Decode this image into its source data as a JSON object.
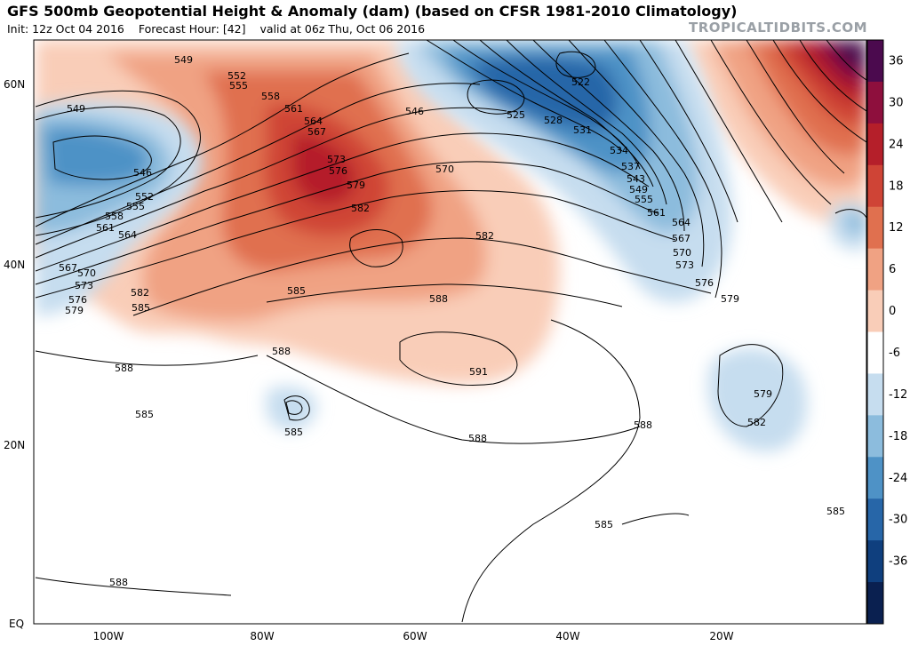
{
  "header": {
    "title": "GFS 500mb Geopotential Height & Anomaly (dam) (based on CFSR 1981-2010 Climatology)",
    "init": "Init: 12z Oct 04 2016",
    "forecast_hour": "Forecast Hour: [42]",
    "valid": "valid at 06z Thu, Oct 06 2016",
    "brand": "TROPICALTIDBITS.COM"
  },
  "axes": {
    "lat_ticks": [
      "60N",
      "40N",
      "20N",
      "EQ"
    ],
    "lon_ticks": [
      "100W",
      "80W",
      "60W",
      "40W",
      "20W"
    ]
  },
  "colorbar": {
    "ticks": [
      "36",
      "30",
      "24",
      "18",
      "12",
      "6",
      "0",
      "-6",
      "-12",
      "-18",
      "-24",
      "-30",
      "-36"
    ],
    "colors": [
      "#4b0a4e",
      "#8e0f3d",
      "#b51f2a",
      "#cf4436",
      "#e0704f",
      "#f0a283",
      "#f9cdb8",
      "#ffffff",
      "#c6ddef",
      "#8cbcdd",
      "#4e92c6",
      "#2766a8",
      "#0f3f7e",
      "#0a2050"
    ]
  },
  "contour_labels": [
    "549",
    "552",
    "555",
    "558",
    "561",
    "564",
    "567",
    "573",
    "576",
    "579",
    "582",
    "546",
    "570",
    "522",
    "525",
    "528",
    "531",
    "534",
    "537",
    "543",
    "549",
    "555",
    "561",
    "564",
    "567",
    "570",
    "573",
    "576",
    "579",
    "549",
    "546",
    "552",
    "555",
    "558",
    "561",
    "564",
    "567",
    "570",
    "573",
    "576",
    "579",
    "582",
    "585",
    "585",
    "588",
    "582",
    "591",
    "588",
    "588",
    "588",
    "585",
    "588",
    "585",
    "579",
    "582",
    "585",
    "585",
    "588"
  ]
}
